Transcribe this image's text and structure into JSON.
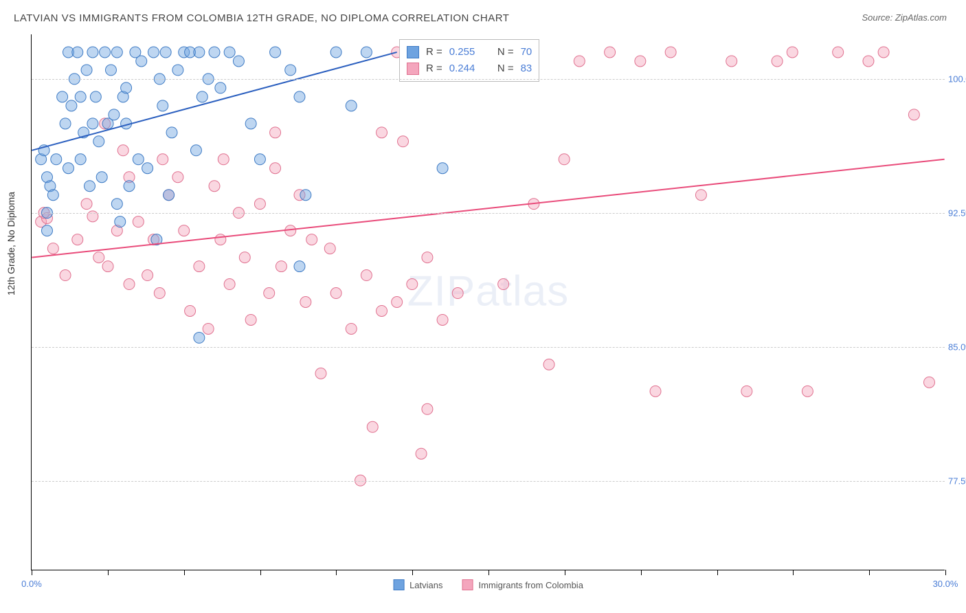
{
  "title": "LATVIAN VS IMMIGRANTS FROM COLOMBIA 12TH GRADE, NO DIPLOMA CORRELATION CHART",
  "source": "Source: ZipAtlas.com",
  "ylabel": "12th Grade, No Diploma",
  "watermark_a": "ZIP",
  "watermark_b": "atlas",
  "chart": {
    "type": "scatter",
    "background_color": "#ffffff",
    "grid_color": "#cccccc",
    "axis_color": "#000000",
    "tick_label_color": "#4a7dd6",
    "label_color": "#333333",
    "label_fontsize": 14,
    "title_fontsize": 15,
    "xlim": [
      0,
      30
    ],
    "ylim": [
      72.5,
      102.5
    ],
    "xtick_positions": [
      0,
      2.5,
      5,
      7.5,
      10,
      12.5,
      15,
      17.5,
      20,
      22.5,
      25,
      27.5,
      30
    ],
    "xtick_labels": {
      "0": "0.0%",
      "30": "30.0%"
    },
    "ytick_positions": [
      77.5,
      85.0,
      92.5,
      100.0
    ],
    "ytick_labels": [
      "77.5%",
      "85.0%",
      "92.5%",
      "100.0%"
    ],
    "marker_radius": 8,
    "marker_opacity": 0.45,
    "line_width": 2,
    "series": [
      {
        "name": "Latvians",
        "legend_label": "Latvians",
        "r_value": "0.255",
        "n_value": "70",
        "fill_color": "#6ea3e0",
        "stroke_color": "#3d7ac4",
        "line_color": "#2b5fbf",
        "trend": {
          "x1": 0,
          "y1": 96.0,
          "x2": 12,
          "y2": 101.5
        },
        "points": [
          [
            0.3,
            95.5
          ],
          [
            0.5,
            94.5
          ],
          [
            0.5,
            91.5
          ],
          [
            0.4,
            96.0
          ],
          [
            0.6,
            94.0
          ],
          [
            0.8,
            95.5
          ],
          [
            0.7,
            93.5
          ],
          [
            0.5,
            92.5
          ],
          [
            1.0,
            99.0
          ],
          [
            1.1,
            97.5
          ],
          [
            1.2,
            101.5
          ],
          [
            1.3,
            98.5
          ],
          [
            1.4,
            100.0
          ],
          [
            1.5,
            101.5
          ],
          [
            1.6,
            99.0
          ],
          [
            1.8,
            100.5
          ],
          [
            1.7,
            97.0
          ],
          [
            1.2,
            95.0
          ],
          [
            1.6,
            95.5
          ],
          [
            2.0,
            101.5
          ],
          [
            2.2,
            96.5
          ],
          [
            2.1,
            99.0
          ],
          [
            2.4,
            101.5
          ],
          [
            2.6,
            100.5
          ],
          [
            2.8,
            101.5
          ],
          [
            2.3,
            94.5
          ],
          [
            2.5,
            97.5
          ],
          [
            3.0,
            99.0
          ],
          [
            3.2,
            94.0
          ],
          [
            3.4,
            101.5
          ],
          [
            3.6,
            101.0
          ],
          [
            3.1,
            97.5
          ],
          [
            3.8,
            95.0
          ],
          [
            4.0,
            101.5
          ],
          [
            4.2,
            100.0
          ],
          [
            4.4,
            101.5
          ],
          [
            4.6,
            97.0
          ],
          [
            4.8,
            100.5
          ],
          [
            5.0,
            101.5
          ],
          [
            5.2,
            101.5
          ],
          [
            5.5,
            101.5
          ],
          [
            5.4,
            96.0
          ],
          [
            5.8,
            100.0
          ],
          [
            6.0,
            101.5
          ],
          [
            6.2,
            99.5
          ],
          [
            6.5,
            101.5
          ],
          [
            6.8,
            101.0
          ],
          [
            7.2,
            97.5
          ],
          [
            3.1,
            99.5
          ],
          [
            3.5,
            95.5
          ],
          [
            2.0,
            97.5
          ],
          [
            2.7,
            98.0
          ],
          [
            4.3,
            98.5
          ],
          [
            5.6,
            99.0
          ],
          [
            1.9,
            94.0
          ],
          [
            2.8,
            93.0
          ],
          [
            8.0,
            101.5
          ],
          [
            8.5,
            100.5
          ],
          [
            4.5,
            93.5
          ],
          [
            9.0,
            93.5
          ],
          [
            10.0,
            101.5
          ],
          [
            10.5,
            98.5
          ],
          [
            11.0,
            101.5
          ],
          [
            8.8,
            99.0
          ],
          [
            7.5,
            95.5
          ],
          [
            13.5,
            95.0
          ],
          [
            5.5,
            85.5
          ],
          [
            4.1,
            91.0
          ],
          [
            8.8,
            89.5
          ],
          [
            2.9,
            92.0
          ]
        ]
      },
      {
        "name": "Immigrants from Colombia",
        "legend_label": "Immigrants from Colombia",
        "r_value": "0.244",
        "n_value": "83",
        "fill_color": "#f4a6bd",
        "stroke_color": "#e0708f",
        "line_color": "#e94b7a",
        "trend": {
          "x1": 0,
          "y1": 90.0,
          "x2": 30,
          "y2": 95.5
        },
        "points": [
          [
            0.3,
            92.0
          ],
          [
            0.5,
            92.2
          ],
          [
            0.4,
            92.5
          ],
          [
            0.7,
            90.5
          ],
          [
            1.1,
            89.0
          ],
          [
            1.5,
            91.0
          ],
          [
            1.8,
            93.0
          ],
          [
            2.0,
            92.3
          ],
          [
            2.2,
            90.0
          ],
          [
            2.4,
            97.5
          ],
          [
            2.5,
            89.5
          ],
          [
            2.8,
            91.5
          ],
          [
            3.0,
            96.0
          ],
          [
            3.2,
            94.5
          ],
          [
            3.2,
            88.5
          ],
          [
            3.5,
            92.0
          ],
          [
            3.8,
            89.0
          ],
          [
            4.0,
            91.0
          ],
          [
            4.2,
            88.0
          ],
          [
            4.5,
            93.5
          ],
          [
            4.8,
            94.5
          ],
          [
            5.0,
            91.5
          ],
          [
            5.2,
            87.0
          ],
          [
            5.5,
            89.5
          ],
          [
            5.8,
            86.0
          ],
          [
            6.0,
            94.0
          ],
          [
            6.2,
            91.0
          ],
          [
            6.5,
            88.5
          ],
          [
            6.8,
            92.5
          ],
          [
            7.0,
            90.0
          ],
          [
            7.2,
            86.5
          ],
          [
            7.5,
            93.0
          ],
          [
            7.8,
            88.0
          ],
          [
            8.0,
            95.0
          ],
          [
            8.2,
            89.5
          ],
          [
            8.5,
            91.5
          ],
          [
            8.8,
            93.5
          ],
          [
            9.0,
            87.5
          ],
          [
            9.2,
            91.0
          ],
          [
            9.5,
            83.5
          ],
          [
            9.8,
            90.5
          ],
          [
            10.0,
            88.0
          ],
          [
            10.5,
            86.0
          ],
          [
            11.0,
            89.0
          ],
          [
            11.5,
            97.0
          ],
          [
            12.0,
            87.5
          ],
          [
            12.2,
            96.5
          ],
          [
            12.5,
            88.5
          ],
          [
            13.0,
            90.0
          ],
          [
            13.5,
            86.5
          ],
          [
            14.0,
            88.0
          ],
          [
            10.8,
            77.5
          ],
          [
            11.2,
            80.5
          ],
          [
            12.8,
            79.0
          ],
          [
            13.0,
            81.5
          ],
          [
            11.5,
            87.0
          ],
          [
            12.0,
            101.5
          ],
          [
            13.2,
            100.5
          ],
          [
            14.5,
            101.0
          ],
          [
            15.5,
            88.5
          ],
          [
            16.0,
            101.5
          ],
          [
            16.5,
            93.0
          ],
          [
            17.0,
            84.0
          ],
          [
            17.5,
            95.5
          ],
          [
            18.0,
            101.0
          ],
          [
            19.0,
            101.5
          ],
          [
            20.0,
            101.0
          ],
          [
            21.0,
            101.5
          ],
          [
            20.5,
            82.5
          ],
          [
            22.0,
            93.5
          ],
          [
            23.0,
            101.0
          ],
          [
            23.5,
            82.5
          ],
          [
            24.5,
            101.0
          ],
          [
            25.0,
            101.5
          ],
          [
            25.5,
            82.5
          ],
          [
            26.5,
            101.5
          ],
          [
            27.5,
            101.0
          ],
          [
            28.0,
            101.5
          ],
          [
            29.0,
            98.0
          ],
          [
            29.5,
            83.0
          ],
          [
            4.3,
            95.5
          ],
          [
            6.3,
            95.5
          ],
          [
            8.0,
            97.0
          ]
        ]
      }
    ]
  },
  "legend_r_prefix": "R = ",
  "legend_n_prefix": "N = "
}
